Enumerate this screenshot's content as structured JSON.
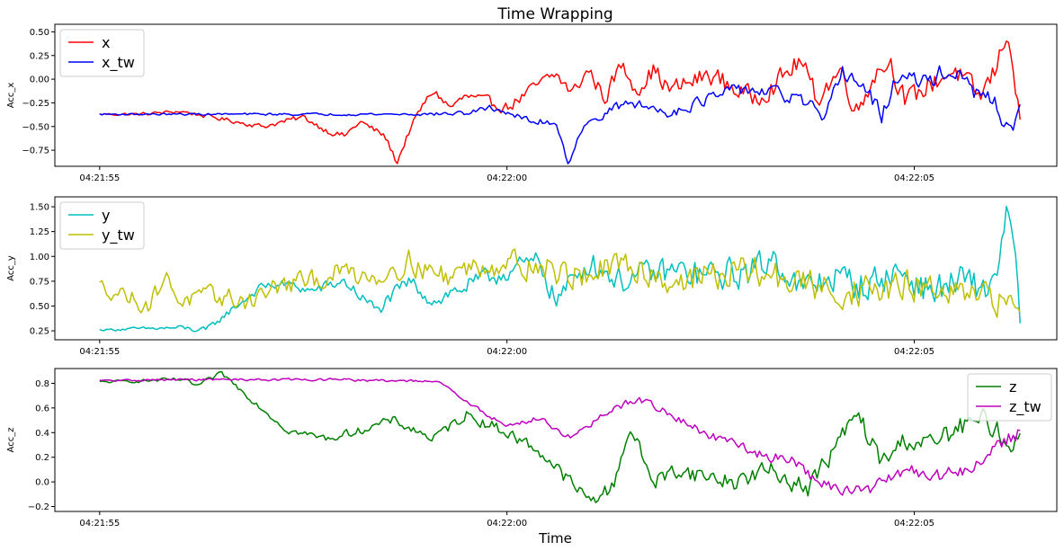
{
  "chart_data": {
    "title": "Time Wrapping",
    "xlabel": "Time",
    "x_ticks": [
      "04:21:55",
      "04:22:00",
      "04:22:05"
    ],
    "x_tick_times_s": [
      0,
      5,
      10
    ],
    "x_range_s": [
      -0.55,
      11.75
    ],
    "n_points": 400,
    "t_start_s": 0,
    "t_end_s": 11.3,
    "panels": [
      {
        "type": "line",
        "ylabel": "Acc_x",
        "ylim": [
          -0.92,
          0.58
        ],
        "yticks": [
          -0.75,
          -0.5,
          -0.25,
          0.0,
          0.25,
          0.5
        ],
        "ytick_labels": [
          "−0.75",
          "−0.50",
          "−0.25",
          "0.00",
          "0.25",
          "0.50"
        ],
        "legend": "upper left",
        "series": [
          {
            "name": "x",
            "color": "#ff0000",
            "points": [
              [
                0,
                -0.37
              ],
              [
                0.5,
                -0.37
              ],
              [
                1,
                -0.34
              ],
              [
                1.5,
                -0.42
              ],
              [
                2,
                -0.5
              ],
              [
                2.5,
                -0.4
              ],
              [
                2.8,
                -0.55
              ],
              [
                3,
                -0.6
              ],
              [
                3.2,
                -0.45
              ],
              [
                3.5,
                -0.6
              ],
              [
                3.65,
                -0.88
              ],
              [
                3.8,
                -0.55
              ],
              [
                3.95,
                -0.3
              ],
              [
                4.1,
                -0.12
              ],
              [
                4.3,
                -0.3
              ],
              [
                4.5,
                -0.18
              ],
              [
                4.8,
                -0.25
              ],
              [
                5.0,
                -0.3
              ],
              [
                5.2,
                -0.18
              ],
              [
                5.4,
                -0.05
              ],
              [
                5.6,
                0.05
              ],
              [
                5.8,
                -0.15
              ],
              [
                6,
                0.1
              ],
              [
                6.2,
                -0.2
              ],
              [
                6.4,
                0.15
              ],
              [
                6.6,
                -0.1
              ],
              [
                6.8,
                0.1
              ],
              [
                7,
                -0.12
              ],
              [
                7.5,
                0.05
              ],
              [
                8,
                -0.2
              ],
              [
                8.3,
                -0.05
              ],
              [
                8.6,
                0.2
              ],
              [
                8.8,
                -0.2
              ],
              [
                9.1,
                0.1
              ],
              [
                9.3,
                -0.35
              ],
              [
                9.5,
                0.05
              ],
              [
                9.7,
                0.2
              ],
              [
                9.9,
                -0.25
              ],
              [
                10.2,
                -0.05
              ],
              [
                10.5,
                0.1
              ],
              [
                10.8,
                -0.2
              ],
              [
                11.0,
                0.1
              ],
              [
                11.15,
                0.55
              ],
              [
                11.3,
                -0.5
              ]
            ],
            "noise": [
              0.015,
              0.04,
              0.12,
              0.13
            ]
          },
          {
            "name": "x_tw",
            "color": "#0000ff",
            "points": [
              [
                0,
                -0.37
              ],
              [
                1,
                -0.37
              ],
              [
                2,
                -0.37
              ],
              [
                3,
                -0.37
              ],
              [
                4,
                -0.37
              ],
              [
                4.5,
                -0.36
              ],
              [
                4.8,
                -0.3
              ],
              [
                5.0,
                -0.35
              ],
              [
                5.3,
                -0.45
              ],
              [
                5.6,
                -0.45
              ],
              [
                5.75,
                -0.88
              ],
              [
                5.9,
                -0.55
              ],
              [
                6.2,
                -0.35
              ],
              [
                6.5,
                -0.25
              ],
              [
                7,
                -0.35
              ],
              [
                7.5,
                -0.2
              ],
              [
                7.9,
                -0.1
              ],
              [
                8.3,
                -0.15
              ],
              [
                8.7,
                -0.25
              ],
              [
                8.9,
                -0.5
              ],
              [
                9.1,
                0.1
              ],
              [
                9.4,
                -0.1
              ],
              [
                9.6,
                -0.4
              ],
              [
                9.8,
                0.05
              ],
              [
                10.1,
                -0.05
              ],
              [
                10.4,
                0.1
              ],
              [
                10.7,
                -0.1
              ],
              [
                11.0,
                -0.3
              ],
              [
                11.15,
                -0.5
              ],
              [
                11.3,
                -0.38
              ]
            ],
            "noise": [
              0.01,
              0.015,
              0.07,
              0.12
            ]
          }
        ]
      },
      {
        "type": "line",
        "ylabel": "Acc_y",
        "ylim": [
          0.16,
          1.6
        ],
        "yticks": [
          0.25,
          0.5,
          0.75,
          1.0,
          1.25,
          1.5
        ],
        "ytick_labels": [
          "0.25",
          "0.50",
          "0.75",
          "1.00",
          "1.25",
          "1.50"
        ],
        "legend": "upper left",
        "series": [
          {
            "name": "y",
            "color": "#00bfbf",
            "points": [
              [
                0,
                0.26
              ],
              [
                0.5,
                0.27
              ],
              [
                1,
                0.28
              ],
              [
                1.3,
                0.25
              ],
              [
                1.6,
                0.45
              ],
              [
                2,
                0.7
              ],
              [
                2.3,
                0.72
              ],
              [
                2.6,
                0.65
              ],
              [
                3.0,
                0.75
              ],
              [
                3.4,
                0.45
              ],
              [
                3.8,
                0.75
              ],
              [
                4.1,
                0.55
              ],
              [
                4.5,
                0.7
              ],
              [
                5.0,
                0.85
              ],
              [
                5.4,
                0.95
              ],
              [
                5.6,
                0.55
              ],
              [
                6.0,
                0.95
              ],
              [
                6.4,
                0.75
              ],
              [
                6.6,
                0.8
              ],
              [
                7,
                0.85
              ],
              [
                7.5,
                0.8
              ],
              [
                8,
                0.85
              ],
              [
                8.3,
                1.0
              ],
              [
                8.6,
                0.65
              ],
              [
                9.0,
                0.8
              ],
              [
                9.4,
                0.7
              ],
              [
                9.8,
                0.85
              ],
              [
                10.2,
                0.65
              ],
              [
                10.6,
                0.75
              ],
              [
                10.9,
                0.65
              ],
              [
                11.05,
                1.0
              ],
              [
                11.15,
                1.48
              ],
              [
                11.3,
                0.45
              ]
            ],
            "noise": [
              0.01,
              0.08,
              0.17,
              0.18
            ]
          },
          {
            "name": "y_tw",
            "color": "#bfbf00",
            "points": [
              [
                0,
                0.7
              ],
              [
                0.3,
                0.62
              ],
              [
                0.6,
                0.5
              ],
              [
                0.8,
                0.8
              ],
              [
                1.0,
                0.55
              ],
              [
                1.4,
                0.6
              ],
              [
                1.8,
                0.55
              ],
              [
                2.2,
                0.7
              ],
              [
                2.6,
                0.75
              ],
              [
                3.0,
                0.85
              ],
              [
                3.4,
                0.8
              ],
              [
                3.8,
                0.95
              ],
              [
                4.2,
                0.8
              ],
              [
                4.6,
                0.9
              ],
              [
                5.0,
                0.95
              ],
              [
                5.4,
                0.9
              ],
              [
                5.8,
                0.8
              ],
              [
                6.2,
                0.85
              ],
              [
                6.6,
                0.9
              ],
              [
                7.0,
                0.75
              ],
              [
                7.5,
                0.8
              ],
              [
                8,
                0.85
              ],
              [
                8.5,
                0.75
              ],
              [
                9,
                0.65
              ],
              [
                9.5,
                0.65
              ],
              [
                10,
                0.7
              ],
              [
                10.5,
                0.6
              ],
              [
                11,
                0.55
              ],
              [
                11.3,
                0.52
              ]
            ],
            "noise": [
              0.09,
              0.13,
              0.18,
              0.16
            ]
          }
        ]
      },
      {
        "type": "line",
        "ylabel": "Acc_z",
        "ylim": [
          -0.24,
          0.92
        ],
        "yticks": [
          -0.2,
          0.0,
          0.2,
          0.4,
          0.6,
          0.8
        ],
        "ytick_labels": [
          "−0.2",
          "0.0",
          "0.2",
          "0.4",
          "0.6",
          "0.8"
        ],
        "legend": "upper right",
        "series": [
          {
            "name": "z",
            "color": "#008000",
            "points": [
              [
                0,
                0.81
              ],
              [
                0.5,
                0.82
              ],
              [
                1,
                0.83
              ],
              [
                1.2,
                0.78
              ],
              [
                1.5,
                0.88
              ],
              [
                1.9,
                0.65
              ],
              [
                2.3,
                0.42
              ],
              [
                2.8,
                0.35
              ],
              [
                3.2,
                0.42
              ],
              [
                3.6,
                0.5
              ],
              [
                4.1,
                0.35
              ],
              [
                4.5,
                0.55
              ],
              [
                5.0,
                0.4
              ],
              [
                5.4,
                0.25
              ],
              [
                5.7,
                0.05
              ],
              [
                6.0,
                -0.15
              ],
              [
                6.3,
                -0.05
              ],
              [
                6.5,
                0.45
              ],
              [
                6.8,
                0.0
              ],
              [
                7.1,
                0.1
              ],
              [
                7.4,
                0.05
              ],
              [
                7.8,
                0.0
              ],
              [
                8.2,
                0.1
              ],
              [
                8.7,
                -0.05
              ],
              [
                9.0,
                0.25
              ],
              [
                9.3,
                0.55
              ],
              [
                9.6,
                0.15
              ],
              [
                9.9,
                0.35
              ],
              [
                10.2,
                0.3
              ],
              [
                10.6,
                0.45
              ],
              [
                10.9,
                0.5
              ],
              [
                11.05,
                0.4
              ],
              [
                11.15,
                0.25
              ],
              [
                11.3,
                0.45
              ]
            ],
            "noise": [
              0.01,
              0.04,
              0.08,
              0.1
            ]
          },
          {
            "name": "z_tw",
            "color": "#bf00bf",
            "points": [
              [
                0,
                0.82
              ],
              [
                1,
                0.83
              ],
              [
                2,
                0.83
              ],
              [
                3,
                0.83
              ],
              [
                3.5,
                0.82
              ],
              [
                3.9,
                0.82
              ],
              [
                4.2,
                0.8
              ],
              [
                4.5,
                0.65
              ],
              [
                5.0,
                0.45
              ],
              [
                5.4,
                0.52
              ],
              [
                5.8,
                0.35
              ],
              [
                6.2,
                0.55
              ],
              [
                6.6,
                0.68
              ],
              [
                7.0,
                0.55
              ],
              [
                7.4,
                0.4
              ],
              [
                7.8,
                0.3
              ],
              [
                8.2,
                0.2
              ],
              [
                8.5,
                0.2
              ],
              [
                8.8,
                0.0
              ],
              [
                9.2,
                -0.08
              ],
              [
                9.5,
                -0.05
              ],
              [
                9.9,
                0.1
              ],
              [
                10.3,
                0.05
              ],
              [
                10.7,
                0.1
              ],
              [
                11.0,
                0.3
              ],
              [
                11.3,
                0.4
              ]
            ],
            "noise": [
              0.01,
              0.01,
              0.04,
              0.06
            ]
          }
        ]
      }
    ]
  }
}
